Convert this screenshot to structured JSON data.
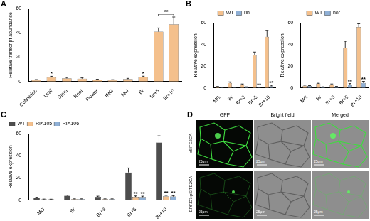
{
  "chart_data": [
    {
      "panel": "A",
      "type": "bar",
      "categories": [
        "Cotyledon",
        "Leaf",
        "Stem",
        "Root",
        "Flower",
        "IMG",
        "MG",
        "Br",
        "Br+5",
        "Br+10"
      ],
      "values": [
        1.2,
        3.5,
        2.6,
        2.4,
        1.5,
        1.2,
        2.0,
        3.6,
        41,
        47
      ],
      "errors": [
        0.4,
        0.8,
        0.8,
        0.6,
        0.4,
        0.3,
        0.6,
        0.8,
        3,
        6
      ],
      "color": "#f4c08c",
      "y_label": "Relative transcript abundance",
      "ylim": [
        0,
        60
      ],
      "yticks": [
        0,
        20,
        40,
        60
      ],
      "grid": false,
      "annotations": [
        {
          "category": "Leaf",
          "text": "*"
        },
        {
          "category": "Br",
          "text": "*"
        },
        {
          "from": "Br+5",
          "to": "Br+10",
          "text": "**"
        }
      ]
    },
    {
      "panel": "B",
      "type": "bar",
      "categories": [
        "MG",
        "Br",
        "Br+3",
        "Br+5",
        "Br+10"
      ],
      "series": [
        {
          "name": "WT",
          "color": "#f4c08c",
          "values": [
            1.0,
            4.5,
            3.2,
            30,
            47
          ],
          "errors": [
            0.3,
            1.0,
            0.4,
            3,
            6
          ]
        },
        {
          "name": "rin",
          "color": "#8fb0d6",
          "values": [
            0.6,
            0.5,
            0.8,
            0.5,
            1.6
          ],
          "errors": [
            0.2,
            0.2,
            0.2,
            0.2,
            0.8
          ]
        }
      ],
      "y_label": "Relative expression",
      "ylim": [
        0,
        60
      ],
      "yticks": [
        0,
        20,
        40,
        60
      ],
      "grid": false,
      "legend": "top",
      "annotations": [
        {
          "category": "Br+5",
          "series": "rin",
          "text": "**"
        },
        {
          "category": "Br+10",
          "series": "rin",
          "text": "**"
        }
      ]
    },
    {
      "type": "bar",
      "categories": [
        "MG",
        "Br",
        "Br+3",
        "Br+5",
        "Br+10"
      ],
      "series": [
        {
          "name": "WT",
          "color": "#f4c08c",
          "values": [
            2.0,
            4.0,
            3.0,
            37,
            56
          ],
          "errors": [
            0.5,
            0.3,
            0.6,
            6,
            3
          ]
        },
        {
          "name": "nor",
          "color": "#8fb0d6",
          "values": [
            1.8,
            0.8,
            1.2,
            3.0,
            4.5
          ],
          "errors": [
            0.3,
            0.2,
            0.2,
            1.0,
            1.5
          ]
        }
      ],
      "y_label": "Relative expression",
      "ylim": [
        0,
        60
      ],
      "yticks": [
        0,
        20,
        40,
        60
      ],
      "grid": false,
      "legend": "top",
      "annotations": [
        {
          "category": "Br+5",
          "series": "nor",
          "text": "**"
        },
        {
          "category": "Br+10",
          "series": "nor",
          "text": "**"
        }
      ]
    },
    {
      "panel": "C",
      "type": "bar",
      "categories": [
        "MG",
        "Br",
        "Br+3",
        "Br+5",
        "Br+10"
      ],
      "series": [
        {
          "name": "WT",
          "color": "#4d4d4d",
          "values": [
            2.0,
            4.0,
            3.0,
            25,
            52
          ],
          "errors": [
            0.6,
            0.5,
            0.6,
            4,
            6
          ]
        },
        {
          "name": "RIA105",
          "color": "#f4c08c",
          "values": [
            0.8,
            1.0,
            1.0,
            3.0,
            3.5
          ],
          "errors": [
            0.2,
            0.2,
            0.2,
            0.8,
            0.8
          ]
        },
        {
          "name": "RIA106",
          "color": "#8fb0d6",
          "values": [
            0.7,
            1.0,
            1.0,
            2.8,
            3.3
          ],
          "errors": [
            0.2,
            0.2,
            0.2,
            0.8,
            0.8
          ]
        }
      ],
      "y_label": "Relative expression",
      "ylim": [
        0,
        60
      ],
      "yticks": [
        0,
        20,
        40,
        60
      ],
      "grid": false,
      "legend": "top-left",
      "annotations": [
        {
          "category": "Br+5",
          "series": "RIA105",
          "text": "**"
        },
        {
          "category": "Br+5",
          "series": "RIA106",
          "text": "**"
        },
        {
          "category": "Br+10",
          "series": "RIA105",
          "text": "**"
        },
        {
          "category": "Br+10",
          "series": "RIA106",
          "text": "**"
        }
      ]
    }
  ],
  "image_panel": {
    "panel": "D",
    "columns": [
      "GFP",
      "Bright field",
      "Merged"
    ],
    "rows": [
      "pSITE2CA",
      "ERF.D7:pSITE2CA"
    ],
    "scale_bar": "25μm"
  }
}
